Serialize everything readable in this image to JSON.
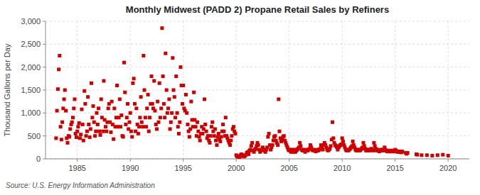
{
  "chart_data": {
    "type": "scatter",
    "title": "Monthly Midwest (PADD 2) Propane Retail Sales by Refiners",
    "ylabel": "Thousand Gallons per Day",
    "source": "Source: U.S. Energy Information Administration",
    "color": "#cc0000",
    "marker": "square",
    "grid": true,
    "xlim": [
      1982,
      2022
    ],
    "ylim": [
      0,
      3000
    ],
    "xticks": [
      1985,
      1990,
      1995,
      2000,
      2005,
      2010,
      2015,
      2020
    ],
    "yticks": [
      0,
      500,
      {
        "value": 1000,
        "label": "1,000"
      },
      {
        "value": 1500,
        "label": "1,500"
      },
      {
        "value": 2000,
        "label": "2,000"
      },
      {
        "value": 2500,
        "label": "2,500"
      },
      {
        "value": 3000,
        "label": "3,000"
      }
    ],
    "x": [
      1983.0,
      1983.08,
      1983.17,
      1983.25,
      1983.33,
      1983.42,
      1983.5,
      1983.58,
      1983.67,
      1983.75,
      1983.83,
      1983.92,
      1984.0,
      1984.08,
      1984.17,
      1984.25,
      1984.33,
      1984.42,
      1984.5,
      1984.58,
      1984.67,
      1984.75,
      1984.83,
      1984.92,
      1985.0,
      1985.08,
      1985.17,
      1985.25,
      1985.33,
      1985.42,
      1985.5,
      1985.58,
      1985.67,
      1985.75,
      1985.83,
      1985.92,
      1986.0,
      1986.08,
      1986.17,
      1986.25,
      1986.33,
      1986.42,
      1986.5,
      1986.58,
      1986.67,
      1986.75,
      1986.83,
      1986.92,
      1987.0,
      1987.08,
      1987.17,
      1987.25,
      1987.33,
      1987.42,
      1987.5,
      1987.58,
      1987.67,
      1987.75,
      1987.83,
      1987.92,
      1988.0,
      1988.08,
      1988.17,
      1988.25,
      1988.33,
      1988.42,
      1988.5,
      1988.58,
      1988.67,
      1988.75,
      1988.83,
      1988.92,
      1989.0,
      1989.08,
      1989.17,
      1989.25,
      1989.33,
      1989.42,
      1989.5,
      1989.58,
      1989.67,
      1989.75,
      1989.83,
      1989.92,
      1990.0,
      1990.08,
      1990.17,
      1990.25,
      1990.33,
      1990.42,
      1990.5,
      1990.58,
      1990.67,
      1990.75,
      1990.83,
      1990.92,
      1991.0,
      1991.08,
      1991.17,
      1991.25,
      1991.33,
      1991.42,
      1991.5,
      1991.58,
      1991.67,
      1991.75,
      1991.83,
      1991.92,
      1992.0,
      1992.08,
      1992.17,
      1992.25,
      1992.33,
      1992.42,
      1992.5,
      1992.58,
      1992.67,
      1992.75,
      1992.83,
      1992.92,
      1993.0,
      1993.08,
      1993.17,
      1993.25,
      1993.33,
      1993.42,
      1993.5,
      1993.58,
      1993.67,
      1993.75,
      1993.83,
      1993.92,
      1994.0,
      1994.08,
      1994.17,
      1994.25,
      1994.33,
      1994.42,
      1994.5,
      1994.58,
      1994.67,
      1994.75,
      1994.83,
      1994.92,
      1995.0,
      1995.08,
      1995.17,
      1995.25,
      1995.33,
      1995.42,
      1995.5,
      1995.58,
      1995.67,
      1995.75,
      1995.83,
      1995.92,
      1996.0,
      1996.08,
      1996.17,
      1996.25,
      1996.33,
      1996.42,
      1996.5,
      1996.58,
      1996.67,
      1996.75,
      1996.83,
      1996.92,
      1997.0,
      1997.08,
      1997.17,
      1997.25,
      1997.33,
      1997.42,
      1997.5,
      1997.58,
      1997.67,
      1997.75,
      1997.83,
      1997.92,
      1998.0,
      1998.08,
      1998.17,
      1998.25,
      1998.33,
      1998.42,
      1998.5,
      1998.58,
      1998.67,
      1998.75,
      1998.83,
      1998.92,
      1999.0,
      1999.08,
      1999.17,
      1999.25,
      1999.33,
      1999.42,
      1999.5,
      1999.58,
      1999.67,
      1999.75,
      1999.83,
      1999.92,
      2000.0,
      2000.08,
      2000.17,
      2000.25,
      2000.33,
      2000.42,
      2000.5,
      2000.58,
      2000.67,
      2000.75,
      2000.83,
      2000.92,
      2001.0,
      2001.08,
      2001.17,
      2001.25,
      2001.33,
      2001.42,
      2001.5,
      2001.58,
      2001.67,
      2001.75,
      2001.83,
      2001.92,
      2002.0,
      2002.08,
      2002.17,
      2002.25,
      2002.33,
      2002.42,
      2002.5,
      2002.58,
      2002.67,
      2002.75,
      2002.83,
      2002.92,
      2003.0,
      2003.08,
      2003.17,
      2003.25,
      2003.33,
      2003.42,
      2003.5,
      2003.58,
      2003.67,
      2003.75,
      2003.83,
      2003.92,
      2004.0,
      2004.08,
      2004.17,
      2004.25,
      2004.33,
      2004.42,
      2004.5,
      2004.58,
      2004.67,
      2004.75,
      2004.83,
      2004.92,
      2005.0,
      2005.08,
      2005.17,
      2005.25,
      2005.33,
      2005.42,
      2005.5,
      2005.58,
      2005.67,
      2005.75,
      2005.83,
      2005.92,
      2006.0,
      2006.08,
      2006.17,
      2006.25,
      2006.33,
      2006.42,
      2006.5,
      2006.58,
      2006.67,
      2006.75,
      2006.83,
      2006.92,
      2007.0,
      2007.08,
      2007.17,
      2007.25,
      2007.33,
      2007.42,
      2007.5,
      2007.58,
      2007.67,
      2007.75,
      2007.83,
      2007.92,
      2008.0,
      2008.08,
      2008.17,
      2008.25,
      2008.33,
      2008.42,
      2008.5,
      2008.58,
      2008.67,
      2008.75,
      2008.83,
      2008.92,
      2009.0,
      2009.08,
      2009.17,
      2009.25,
      2009.33,
      2009.42,
      2009.5,
      2009.58,
      2009.67,
      2009.75,
      2009.83,
      2009.92,
      2010.0,
      2010.08,
      2010.17,
      2010.25,
      2010.33,
      2010.42,
      2010.5,
      2010.58,
      2010.67,
      2010.75,
      2010.83,
      2010.92,
      2011.0,
      2011.08,
      2011.17,
      2011.25,
      2011.33,
      2011.42,
      2011.5,
      2011.58,
      2011.67,
      2011.75,
      2011.83,
      2011.92,
      2012.0,
      2012.08,
      2012.17,
      2012.25,
      2012.33,
      2012.42,
      2012.5,
      2012.58,
      2012.67,
      2012.75,
      2012.83,
      2012.92,
      2013.0,
      2013.08,
      2013.17,
      2013.25,
      2013.33,
      2013.42,
      2013.5,
      2013.58,
      2013.67,
      2013.75,
      2013.83,
      2013.92,
      2014.0,
      2014.08,
      2014.17,
      2014.25,
      2014.33,
      2014.42,
      2014.5,
      2014.58,
      2014.67,
      2014.75,
      2014.83,
      2014.92,
      2015.0,
      2015.08,
      2015.17,
      2015.25,
      2015.33,
      2015.42,
      2015.5,
      2015.58,
      2015.67,
      2016.0,
      2016.08,
      2016.17,
      2017.0,
      2017.08,
      2017.5,
      2018.0,
      2018.5,
      2019.0,
      2019.5,
      2020.0
    ],
    "values": [
      450,
      1050,
      1520,
      1950,
      2250,
      700,
      420,
      800,
      1100,
      1300,
      1500,
      1050,
      450,
      350,
      500,
      480,
      650,
      750,
      800,
      900,
      1100,
      1300,
      550,
      470,
      600,
      700,
      780,
      450,
      530,
      1080,
      750,
      400,
      1480,
      1200,
      500,
      600,
      1350,
      750,
      470,
      650,
      1650,
      900,
      1150,
      800,
      500,
      600,
      1000,
      750,
      1100,
      600,
      520,
      1300,
      900,
      600,
      1700,
      850,
      700,
      600,
      800,
      1100,
      1200,
      800,
      580,
      1250,
      750,
      430,
      1100,
      700,
      900,
      1600,
      700,
      900,
      1300,
      700,
      950,
      500,
      480,
      2100,
      1450,
      750,
      900,
      1200,
      650,
      800,
      1000,
      600,
      480,
      1650,
      1750,
      1200,
      600,
      1100,
      750,
      550,
      700,
      900,
      1350,
      800,
      700,
      2250,
      1500,
      900,
      700,
      1100,
      1400,
      600,
      900,
      1200,
      1800,
      1200,
      1100,
      1700,
      1050,
      750,
      650,
      1250,
      800,
      1650,
      900,
      1100,
      2850,
      1800,
      1200,
      900,
      2300,
      1500,
      1000,
      1100,
      1300,
      650,
      800,
      1000,
      2200,
      1500,
      1350,
      900,
      1800,
      1000,
      700,
      550,
      800,
      2000,
      1600,
      1200,
      1600,
      1100,
      1050,
      1400,
      1000,
      750,
      600,
      480,
      650,
      1250,
      850,
      700,
      1450,
      850,
      700,
      500,
      800,
      600,
      480,
      400,
      550,
      700,
      550,
      650,
      1300,
      750,
      600,
      450,
      500,
      400,
      350,
      500,
      700,
      800,
      600,
      500,
      650,
      400,
      300,
      480,
      550,
      420,
      380,
      480,
      600,
      750,
      600,
      500,
      900,
      500,
      450,
      400,
      350,
      300,
      400,
      500,
      650,
      700,
      600,
      550,
      80,
      50,
      60,
      40,
      30,
      80,
      100,
      80,
      60,
      50,
      70,
      90,
      130,
      150,
      100,
      180,
      200,
      280,
      350,
      180,
      150,
      200,
      220,
      280,
      350,
      300,
      200,
      150,
      180,
      200,
      250,
      200,
      180,
      150,
      200,
      250,
      480,
      550,
      300,
      200,
      250,
      300,
      400,
      480,
      500,
      400,
      350,
      300,
      1300,
      600,
      450,
      380,
      420,
      480,
      500,
      400,
      350,
      300,
      250,
      200,
      180,
      200,
      150,
      200,
      180,
      150,
      200,
      150,
      180,
      200,
      220,
      250,
      350,
      280,
      200,
      180,
      200,
      180,
      150,
      180,
      200,
      180,
      200,
      220,
      300,
      250,
      200,
      180,
      200,
      180,
      160,
      180,
      200,
      180,
      200,
      220,
      300,
      250,
      200,
      300,
      350,
      300,
      250,
      200,
      180,
      200,
      220,
      280,
      420,
      800,
      450,
      350,
      300,
      280,
      250,
      200,
      250,
      280,
      300,
      320,
      450,
      380,
      300,
      250,
      200,
      180,
      200,
      180,
      200,
      220,
      250,
      280,
      380,
      300,
      250,
      200,
      180,
      200,
      180,
      200,
      180,
      200,
      220,
      250,
      350,
      280,
      220,
      180,
      200,
      180,
      200,
      180,
      200,
      220,
      200,
      180,
      350,
      280,
      220,
      180,
      200,
      180,
      160,
      180,
      200,
      180,
      200,
      180,
      250,
      200,
      180,
      160,
      180,
      160,
      180,
      160,
      180,
      160,
      180,
      160,
      200,
      180,
      160,
      150,
      160,
      150,
      160,
      140,
      160,
      130,
      110,
      130,
      100,
      90,
      80,
      80,
      70,
      80,
      90,
      70
    ]
  }
}
